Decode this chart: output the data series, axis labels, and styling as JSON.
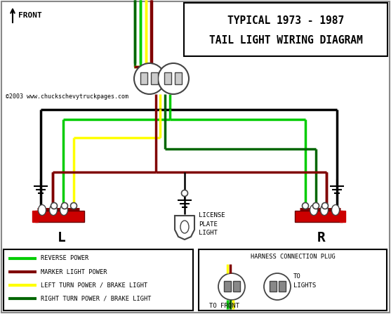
{
  "title_line1": "TYPICAL 1973 - 1987",
  "title_line2": "TAIL LIGHT WIRING DIAGRAM",
  "copyright": "©2003 www.chuckschevytruckpages.com",
  "front_label": "FRONT",
  "label_L": "L",
  "label_R": "R",
  "license_label": "LICENSE\nPLATE\nLIGHT",
  "legend_items": [
    {
      "color": "#00cc00",
      "label": "REVERSE POWER"
    },
    {
      "color": "#800000",
      "label": "MARKER LIGHT POWER"
    },
    {
      "color": "#ffff00",
      "label": "LEFT TURN POWER / BRAKE LIGHT"
    },
    {
      "color": "#006600",
      "label": "RIGHT TURN POWER / BRAKE LIGHT"
    }
  ],
  "harness_label": "HARNESS CONNECTION PLUG",
  "to_front": "TO FRONT",
  "to_lights": "TO\nLIGHTS",
  "bg_color": "#ffffff",
  "wire_bright_green": "#00cc00",
  "wire_dark_red": "#800000",
  "wire_yellow": "#ffff00",
  "wire_dark_green": "#006600",
  "wire_black": "#000000",
  "border_color": "#888888"
}
